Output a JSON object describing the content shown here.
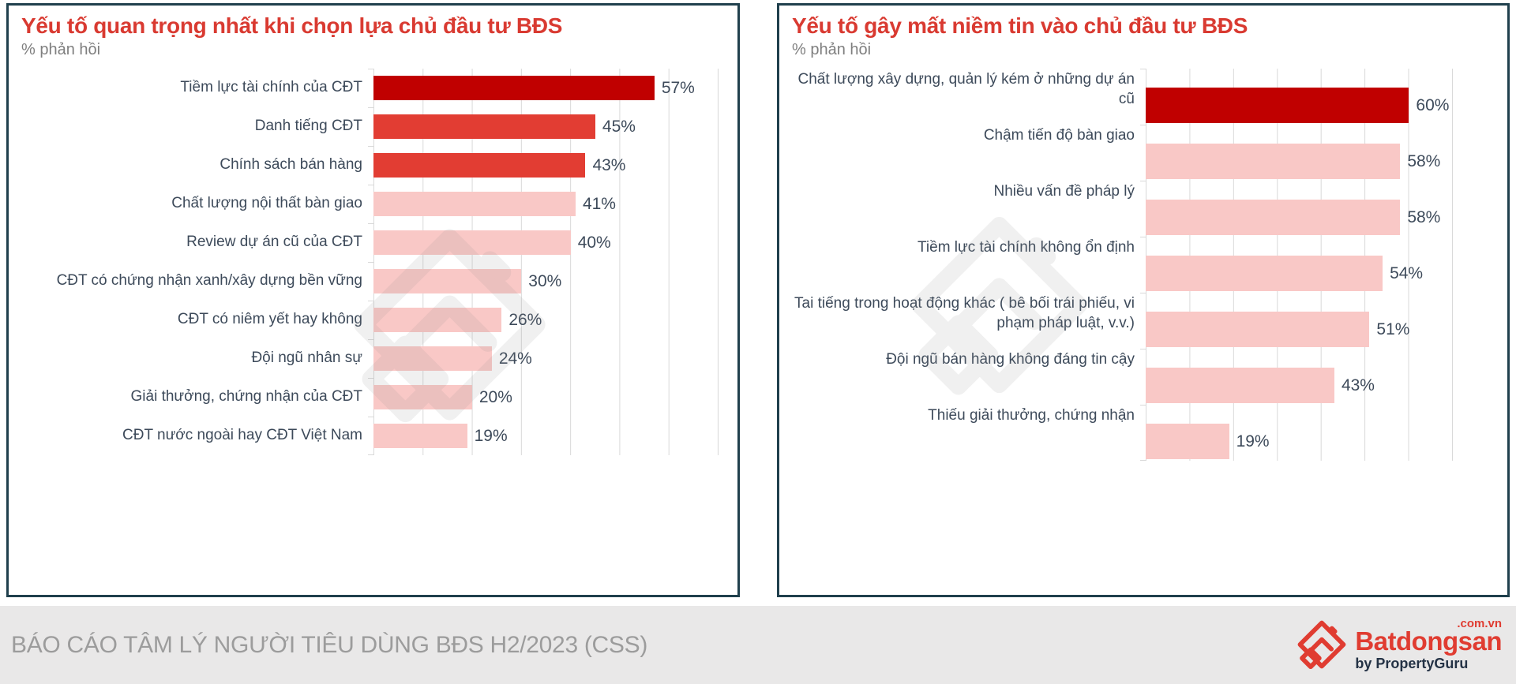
{
  "colors": {
    "dark_red": "#c00000",
    "red": "#e23d33",
    "pink": "#f9c8c6",
    "title_red": "#d93a31",
    "subtitle_gray": "#7f7f7f",
    "label_text": "#3d4a5a",
    "grid": "#d9d9d9",
    "border": "#20404d",
    "footer_bg": "#e9e8e8",
    "footer_text": "#9c9c9c",
    "logo_red": "#e03c31",
    "logo_navy": "#243245",
    "watermark": "#909090"
  },
  "chart_data": [
    {
      "type": "bar",
      "orientation": "horizontal",
      "title": "Yếu tố quan trọng nhất khi chọn lựa chủ đầu tư BĐS",
      "subtitle": "% phản hồi",
      "unit": "%",
      "xlim": [
        0,
        70
      ],
      "gridline_step": 10,
      "grid": true,
      "legend": "none",
      "categories": [
        "Tiềm lực tài chính của CĐT",
        "Danh tiếng CĐT",
        "Chính sách bán hàng",
        "Chất lượng nội thất bàn giao",
        "Review dự án cũ của CĐT",
        "CĐT có chứng nhận xanh/xây dựng bền vững",
        "CĐT có niêm yết hay không",
        "Đội ngũ nhân sự",
        "Giải thưởng, chứng nhận của CĐT",
        "CĐT nước ngoài hay CĐT Việt Nam"
      ],
      "values": [
        57,
        45,
        43,
        41,
        40,
        30,
        26,
        24,
        20,
        19
      ],
      "value_labels": [
        "57%",
        "45%",
        "43%",
        "41%",
        "40%",
        "30%",
        "26%",
        "24%",
        "20%",
        "19%"
      ],
      "bar_colors": [
        "dark_red",
        "red",
        "red",
        "pink",
        "pink",
        "pink",
        "pink",
        "pink",
        "pink",
        "pink"
      ]
    },
    {
      "type": "bar",
      "orientation": "horizontal",
      "title": "Yếu tố gây mất niềm tin vào chủ đầu tư BĐS",
      "subtitle": "% phản hồi",
      "unit": "%",
      "xlim": [
        0,
        70
      ],
      "gridline_step": 10,
      "grid": true,
      "legend": "none",
      "categories": [
        "Chất lượng xây dựng, quản lý kém ở những dự án cũ",
        "Chậm tiến độ bàn giao",
        "Nhiều vấn đề pháp lý",
        "Tiềm lực tài chính không ổn định",
        "Tai tiếng trong hoạt động khác ( bê bối trái phiếu, vi phạm pháp luật, v.v.)",
        "Đội ngũ bán hàng không đáng tin cậy",
        "Thiếu giải thưởng, chứng nhận"
      ],
      "values": [
        60,
        58,
        58,
        54,
        51,
        43,
        19
      ],
      "value_labels": [
        "60%",
        "58%",
        "58%",
        "54%",
        "51%",
        "43%",
        "19%"
      ],
      "bar_colors": [
        "dark_red",
        "pink",
        "pink",
        "pink",
        "pink",
        "pink",
        "pink"
      ]
    }
  ],
  "footer": {
    "report_title": "BÁO CÁO TÂM LÝ NGƯỜI TIÊU DÙNG BĐS H2/2023 (CSS)",
    "logo": {
      "brand": "Batdongsan",
      "domain": ".com.vn",
      "byline": "by PropertyGuru"
    }
  }
}
